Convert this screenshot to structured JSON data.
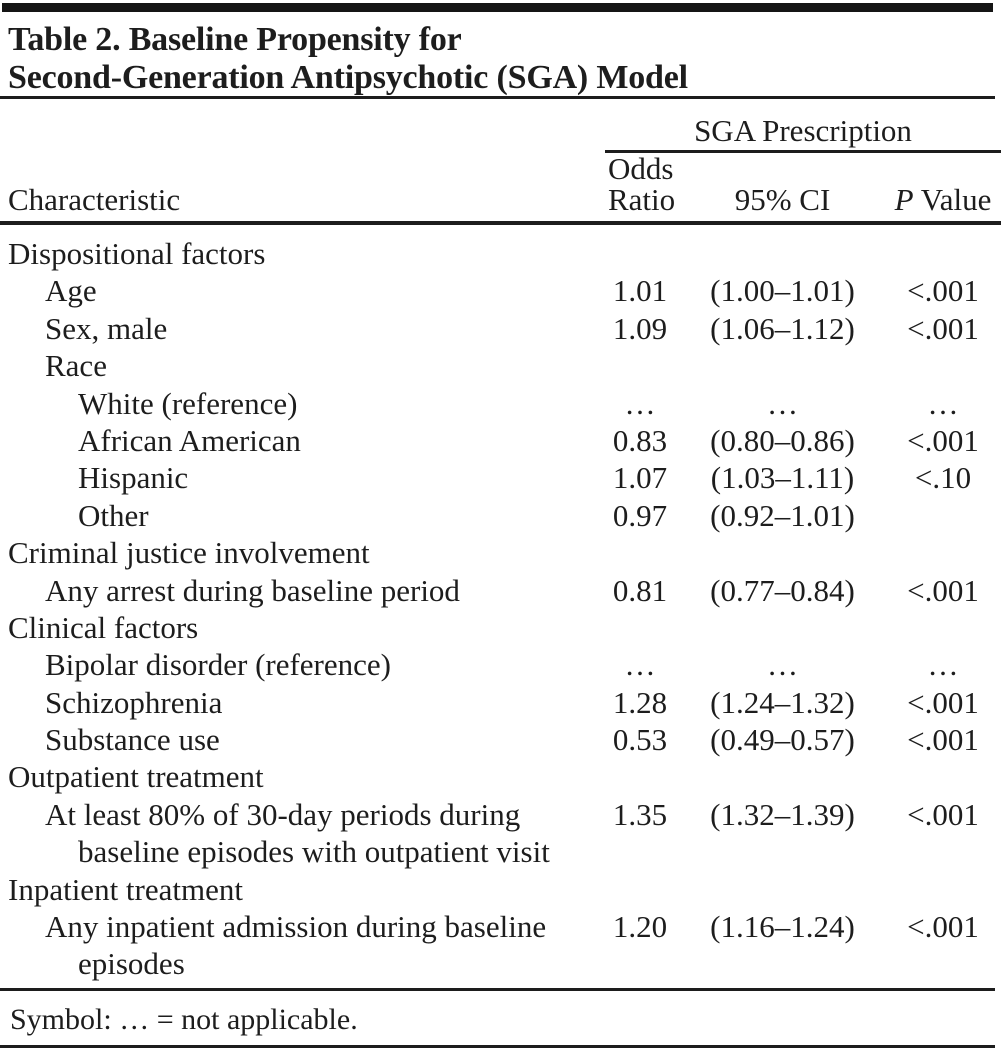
{
  "title": {
    "line1": "Table 2. Baseline Propensity for",
    "line2": "Second-Generation Antipsychotic (SGA) Model"
  },
  "header": {
    "characteristic": "Characteristic",
    "group": "SGA Prescription",
    "odds_line1": "Odds",
    "odds_line2": "Ratio",
    "ci": "95% CI",
    "p_italic": "P",
    "p_rest": " Value"
  },
  "rows": [
    {
      "label": "Dispositional factors",
      "indent": 0,
      "or": "",
      "ci": "",
      "p": ""
    },
    {
      "label": "Age",
      "indent": 1,
      "or": "1.01",
      "ci": "(1.00–1.01)",
      "p": "<.001"
    },
    {
      "label": "Sex, male",
      "indent": 1,
      "or": "1.09",
      "ci": "(1.06–1.12)",
      "p": "<.001"
    },
    {
      "label": "Race",
      "indent": 1,
      "or": "",
      "ci": "",
      "p": ""
    },
    {
      "label": "White (reference)",
      "indent": 2,
      "or": "…",
      "ci": "…",
      "p": "…"
    },
    {
      "label": "African American",
      "indent": 2,
      "or": "0.83",
      "ci": "(0.80–0.86)",
      "p": "<.001"
    },
    {
      "label": "Hispanic",
      "indent": 2,
      "or": "1.07",
      "ci": "(1.03–1.11)",
      "p": "<.10"
    },
    {
      "label": "Other",
      "indent": 2,
      "or": "0.97",
      "ci": "(0.92–1.01)",
      "p": ""
    },
    {
      "label": "Criminal justice involvement",
      "indent": 0,
      "or": "",
      "ci": "",
      "p": ""
    },
    {
      "label": "Any arrest during baseline period",
      "indent": 1,
      "or": "0.81",
      "ci": "(0.77–0.84)",
      "p": "<.001"
    },
    {
      "label": "Clinical factors",
      "indent": 0,
      "or": "",
      "ci": "",
      "p": ""
    },
    {
      "label": "Bipolar disorder (reference)",
      "indent": 1,
      "or": "…",
      "ci": "…",
      "p": "…"
    },
    {
      "label": "Schizophrenia",
      "indent": 1,
      "or": "1.28",
      "ci": "(1.24–1.32)",
      "p": "<.001"
    },
    {
      "label": "Substance use",
      "indent": 1,
      "or": "0.53",
      "ci": "(0.49–0.57)",
      "p": "<.001"
    },
    {
      "label": "Outpatient treatment",
      "indent": 0,
      "or": "",
      "ci": "",
      "p": ""
    },
    {
      "label": "At least 80% of 30-day periods during",
      "indent": 1,
      "or": "1.35",
      "ci": "(1.32–1.39)",
      "p": "<.001"
    },
    {
      "label": "baseline episodes with outpatient visit",
      "indent": 2,
      "or": "",
      "ci": "",
      "p": ""
    },
    {
      "label": "Inpatient treatment",
      "indent": 0,
      "or": "",
      "ci": "",
      "p": ""
    },
    {
      "label": "Any inpatient admission during baseline",
      "indent": 1,
      "or": "1.20",
      "ci": "(1.16–1.24)",
      "p": "<.001"
    },
    {
      "label": "episodes",
      "indent": 2,
      "or": "",
      "ci": "",
      "p": ""
    }
  ],
  "footnote": "Symbol: … = not applicable.",
  "colors": {
    "text": "#1d1d1d",
    "background": "#ffffff",
    "rule": "#1d1d1d",
    "top_bar": "#151515"
  }
}
